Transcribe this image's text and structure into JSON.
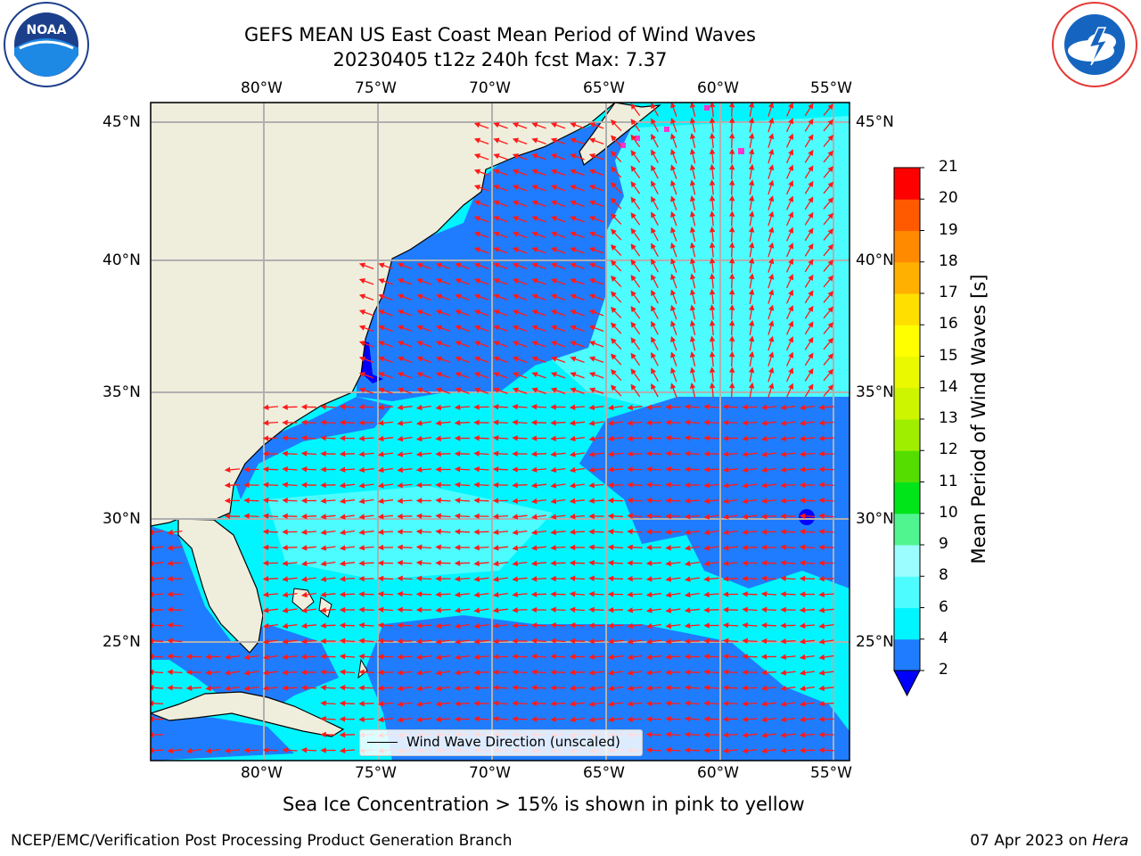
{
  "header": {
    "title": "GEFS MEAN US East Coast Mean Period of Wind Waves",
    "subtitle": "20230405 t12z 240h fcst   Max: 7.37"
  },
  "logos": {
    "left": {
      "icon": "noaa-logo-icon",
      "text": "NOAA",
      "ring": "NATIONAL OCEANIC AND ATMOSPHERIC ADMINISTRATION · U.S. DEPARTMENT OF COMMERCE"
    },
    "right": {
      "icon": "nws-logo-icon",
      "ring": "NATIONAL WEATHER SERVICE"
    }
  },
  "map": {
    "lon_labels": [
      "80°W",
      "75°W",
      "70°W",
      "65°W",
      "60°W",
      "55°W"
    ],
    "lat_labels": [
      "45°N",
      "40°N",
      "35°N",
      "30°N",
      "25°N"
    ],
    "legend_label": "Wind Wave Direction (unscaled)",
    "colors": {
      "land": "#efeedc",
      "ocean_low": "#1f7cff",
      "ocean_mid": "#00f5ff",
      "ocean_light": "#4dfcff",
      "arrows": "#ff1a1a",
      "ice": "#ff33cc"
    }
  },
  "colorbar": {
    "label": "Mean Period of Wind Waves [s]",
    "ticks": [
      "2",
      "4",
      "6",
      "8",
      "9",
      "10",
      "11",
      "12",
      "13",
      "14",
      "15",
      "16",
      "17",
      "18",
      "19",
      "20",
      "21"
    ],
    "colors": [
      "#1f7cff",
      "#00f5ff",
      "#4dfcff",
      "#9bfdff",
      "#50f590",
      "#00e51a",
      "#55dd00",
      "#9fee00",
      "#cdf500",
      "#eaf800",
      "#ffff00",
      "#ffdf00",
      "#ffb000",
      "#ff8a00",
      "#ff5a00",
      "#ff2a00",
      "#ff0000"
    ],
    "under_color": "#0000ff"
  },
  "footer": {
    "ice_note": "Sea Ice Concentration > 15% is shown in pink to yellow",
    "branch": "NCEP/EMC/Verification Post Processing Product Generation Branch",
    "date": "07 Apr 2023 on",
    "host": "Hera"
  }
}
